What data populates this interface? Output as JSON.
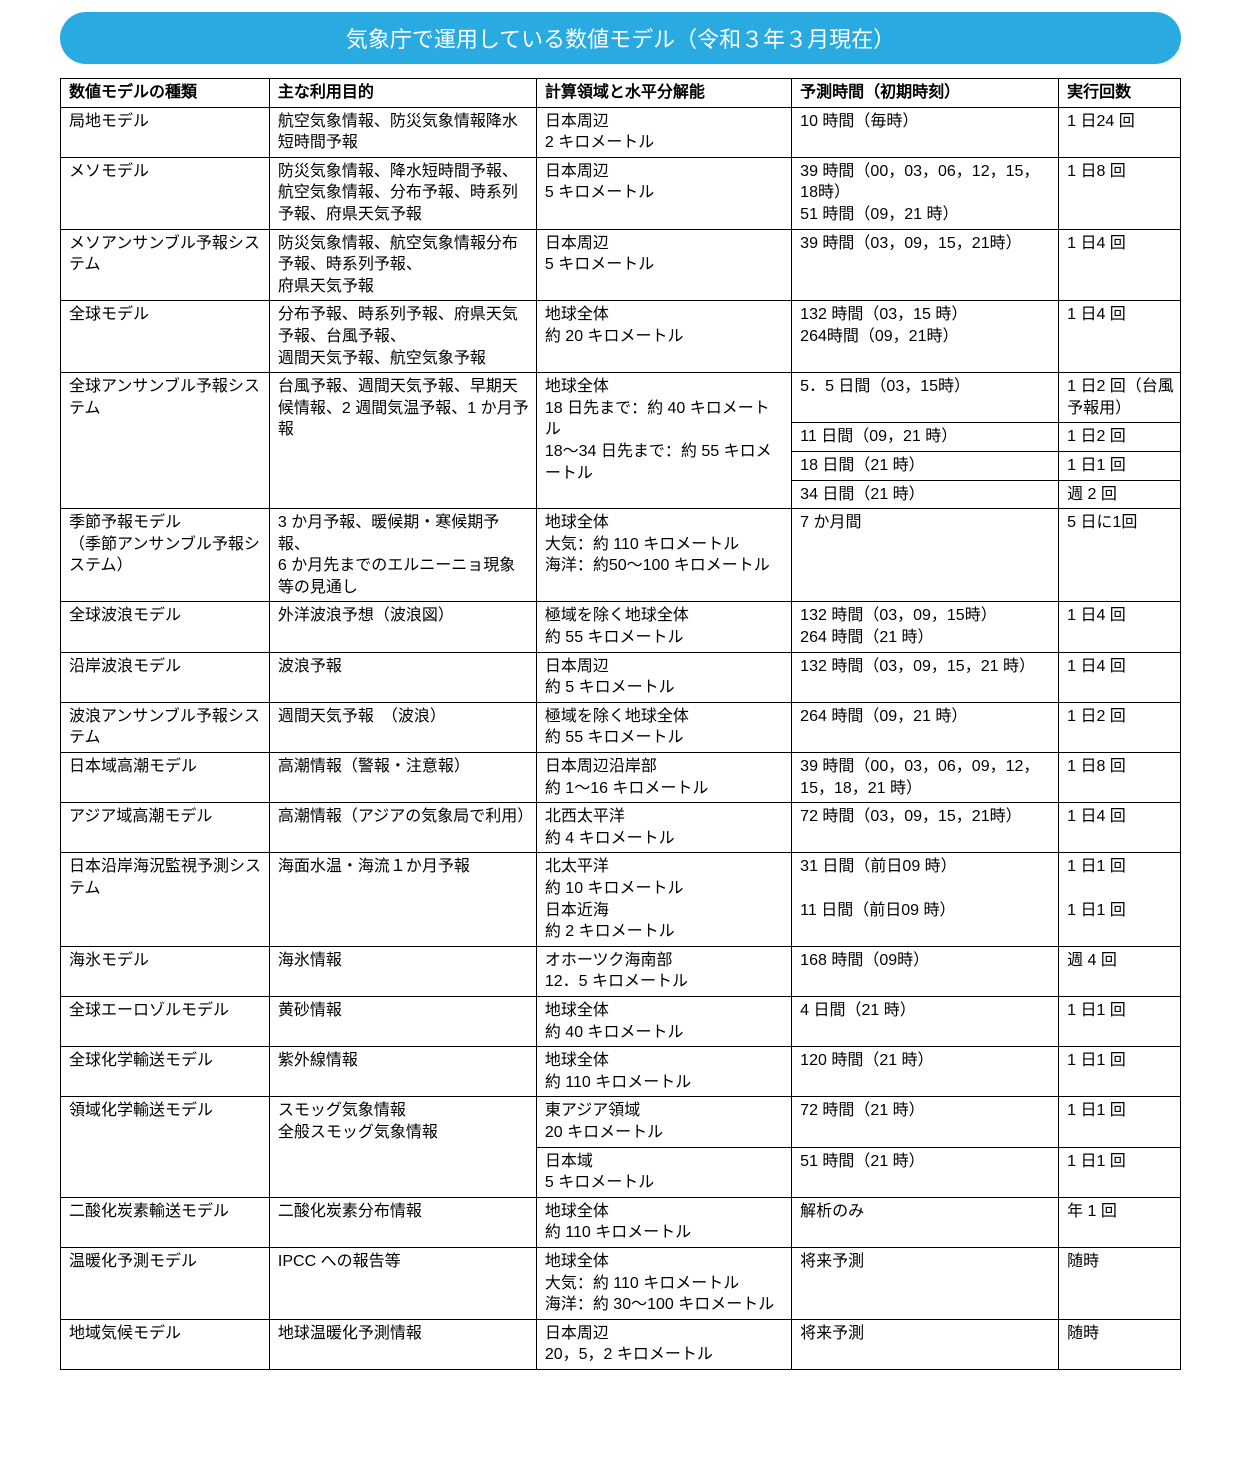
{
  "title": "気象庁で運用している数値モデル（令和３年３月現在）",
  "colors": {
    "header_bg": "#29abe2",
    "header_text": "#ffffff",
    "border": "#000000",
    "text": "#000000",
    "background": "#ffffff"
  },
  "columns": [
    "数値モデルの種類",
    "主な利用目的",
    "計算領域と水平分解能",
    "予測時間（初期時刻）",
    "実行回数"
  ],
  "rows": [
    {
      "model": "局地モデル",
      "purpose": "航空気象情報、防災気象情報降水短時間予報",
      "domain": "日本周辺\n2 キロメートル",
      "forecast": "10 時間（毎時）",
      "runs": "1 日24 回"
    },
    {
      "model": "メソモデル",
      "purpose": "防災気象情報、降水短時間予報、航空気象情報、分布予報、時系列予報、府県天気予報",
      "domain": "日本周辺\n5 キロメートル",
      "forecast": "39 時間（00，03，06，12，15，18時）\n51 時間（09，21 時）",
      "runs": "1 日8 回"
    },
    {
      "model": "メソアンサンブル予報システム",
      "purpose": "防災気象情報、航空気象情報分布予報、時系列予報、\n府県天気予報",
      "domain": "日本周辺\n5 キロメートル",
      "forecast": "39 時間（03，09，15，21時）",
      "runs": "1 日4 回"
    },
    {
      "model": "全球モデル",
      "purpose": "分布予報、時系列予報、府県天気予報、台風予報、\n週間天気予報、航空気象予報",
      "domain": "地球全体\n約 20 キロメートル",
      "forecast": "132 時間（03，15 時）\n264時間（09，21時）",
      "runs": "1 日4 回"
    },
    {
      "model": "全球アンサンブル予報システム",
      "model_rowspan": 4,
      "purpose": "台風予報、週間天気予報、早期天候情報、2 週間気温予報、1 か月予報",
      "purpose_rowspan": 4,
      "domain": "地球全体\n18 日先まで：約 40 キロメートル\n18～34 日先まで：約 55 キロメートル",
      "domain_rowspan": 4,
      "forecast": "5．5 日間（03，15時）",
      "runs": "1 日2 回（台風予報用）"
    },
    {
      "forecast": "11 日間（09，21 時）",
      "runs": "1 日2 回"
    },
    {
      "forecast": "18 日間（21 時）",
      "runs": "1 日1 回"
    },
    {
      "forecast": "34 日間（21 時）",
      "runs": "週 2 回"
    },
    {
      "model": "季節予報モデル\n（季節アンサンブル予報システム）",
      "purpose": "3 か月予報、暖候期・寒候期予報、\n6 か月先までのエルニーニョ現象等の見通し",
      "domain": "地球全体\n大気：約 110 キロメートル\n海洋：約50～100 キロメートル",
      "forecast": "7 か月間",
      "runs": "5 日に1回"
    },
    {
      "model": "全球波浪モデル",
      "purpose": "外洋波浪予想（波浪図）",
      "domain": "極域を除く地球全体\n約 55 キロメートル",
      "forecast": "132 時間（03，09，15時）\n264 時間（21 時）",
      "runs": "1 日4 回"
    },
    {
      "model": "沿岸波浪モデル",
      "purpose": "波浪予報",
      "domain": "日本周辺\n約 5 キロメートル",
      "forecast": "132 時間（03，09，15，21 時）",
      "runs": "1 日4 回"
    },
    {
      "model": "波浪アンサンブル予報システム",
      "purpose": "週間天気予報　（波浪）",
      "domain": "極域を除く地球全体\n約 55 キロメートル",
      "forecast": "264 時間（09，21 時）",
      "runs": "1 日2 回"
    },
    {
      "model": "日本域高潮モデル",
      "purpose": "高潮情報（警報・注意報）",
      "domain": "日本周辺沿岸部\n約 1～16 キロメートル",
      "forecast": "39 時間（00，03，06，09，12，15，18，21 時）",
      "runs": "1 日8 回"
    },
    {
      "model": "アジア域高潮モデル",
      "purpose": "高潮情報（アジアの気象局で利用）",
      "domain": "北西太平洋\n約 4 キロメートル",
      "forecast": "72 時間（03，09，15，21時）",
      "runs": "1 日4 回"
    },
    {
      "model": "日本沿岸海況監視予測システム",
      "purpose": "海面水温・海流１か月予報",
      "domain": "北太平洋\n約 10 キロメートル\n日本近海\n約 2 キロメートル",
      "forecast": "31 日間（前日09 時）\n\n11 日間（前日09 時）",
      "runs": "1 日1 回\n\n1 日1 回"
    },
    {
      "model": "海氷モデル",
      "purpose": "海氷情報",
      "domain": "オホーツク海南部\n12．5 キロメートル",
      "forecast": "168 時間（09時）",
      "runs": "週 4 回"
    },
    {
      "model": "全球エーロゾルモデル",
      "purpose": "黄砂情報",
      "domain": "地球全体\n約 40 キロメートル",
      "forecast": "4 日間（21 時）",
      "runs": "1 日1 回"
    },
    {
      "model": "全球化学輸送モデル",
      "purpose": "紫外線情報",
      "domain": "地球全体\n約 110 キロメートル",
      "forecast": "120 時間（21 時）",
      "runs": "1 日1 回"
    },
    {
      "model": "領域化学輸送モデル",
      "model_rowspan": 2,
      "purpose": "スモッグ気象情報\n全般スモッグ気象情報",
      "purpose_rowspan": 2,
      "domain": "東アジア領域\n20 キロメートル",
      "forecast": "72 時間（21 時）",
      "runs": "1 日1 回"
    },
    {
      "domain": "日本域\n5 キロメートル",
      "forecast": "51 時間（21 時）",
      "runs": "1 日1 回"
    },
    {
      "model": "二酸化炭素輸送モデル",
      "purpose": "二酸化炭素分布情報",
      "domain": "地球全体\n約 110 キロメートル",
      "forecast": "解析のみ",
      "runs": "年 1 回"
    },
    {
      "model": "温暖化予測モデル",
      "purpose": "IPCC への報告等",
      "domain": "地球全体\n大気：約 110 キロメートル\n海洋：約 30～100 キロメートル",
      "forecast": "将来予測",
      "runs": "随時"
    },
    {
      "model": "地域気候モデル",
      "purpose": "地球温暖化予測情報",
      "domain": "日本周辺\n20，5，2 キロメートル",
      "forecast": "将来予測",
      "runs": "随時"
    }
  ]
}
